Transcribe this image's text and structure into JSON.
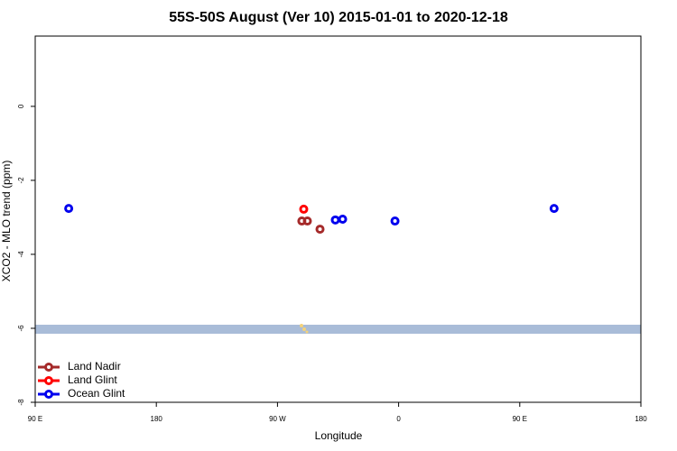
{
  "chart_data": {
    "type": "scatter",
    "title": "55S-50S August (Ver 10)   2015-01-01 to 2020-12-18",
    "xlabel": "Longitude",
    "ylabel": "XCO2 - MLO trend (ppm)",
    "xlim": [
      90,
      540
    ],
    "ylim": [
      -8,
      1.9
    ],
    "xticks": [
      {
        "value": 90,
        "label": "90 E"
      },
      {
        "value": 180,
        "label": "180"
      },
      {
        "value": 270,
        "label": "90 W"
      },
      {
        "value": 360,
        "label": "0"
      },
      {
        "value": 450,
        "label": "90 E"
      },
      {
        "value": 540,
        "label": "180"
      }
    ],
    "yticks": [
      0,
      -2,
      -4,
      -6,
      -8
    ],
    "legend": "bottom-left",
    "series": [
      {
        "name": "Land Nadir",
        "color": "#a52a2a",
        "x": [
          288.1,
          292.2,
          301.6
        ],
        "values": [
          -3.1,
          -3.1,
          -3.32
        ]
      },
      {
        "name": "Land Glint",
        "color": "#ff0000",
        "x": [
          289.5
        ],
        "values": [
          -2.78
        ]
      },
      {
        "name": "Ocean Glint",
        "color": "#0000ee",
        "x": [
          114.9,
          313,
          318.4,
          357.3,
          475.5
        ],
        "values": [
          -2.76,
          -3.07,
          -3.05,
          -3.1,
          -2.76
        ]
      }
    ]
  }
}
